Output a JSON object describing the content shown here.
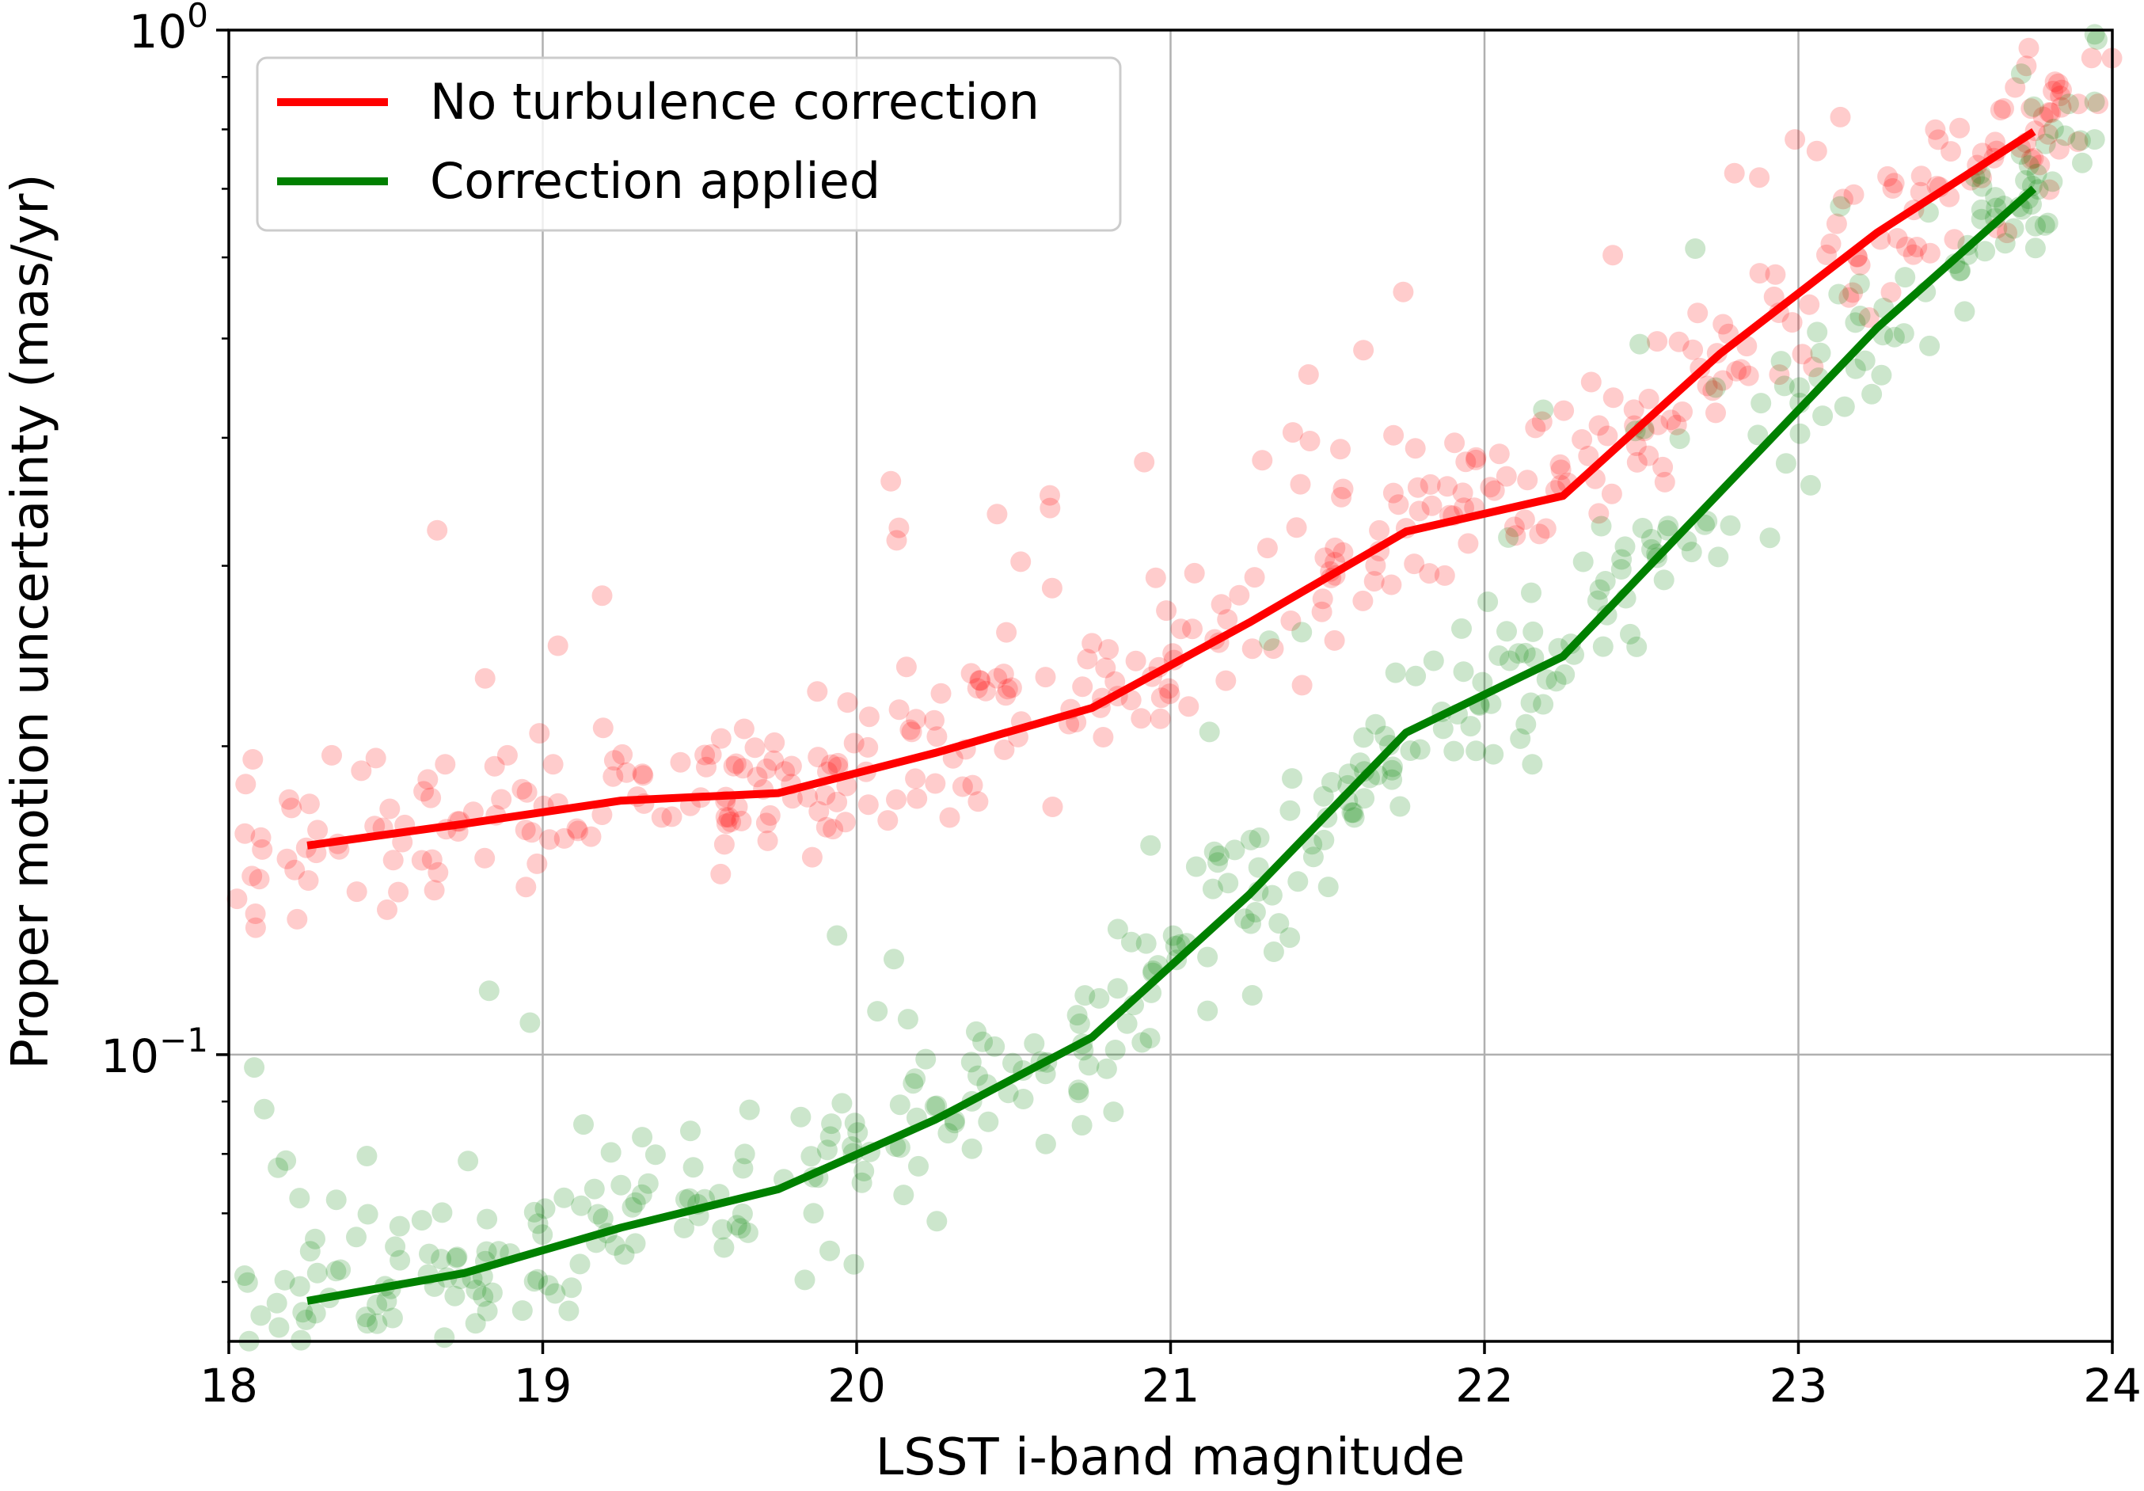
{
  "chart_data": {
    "type": "scatter",
    "xlabel": "LSST i-band magnitude",
    "ylabel": "Proper motion uncertainty (mas/yr)",
    "xlim": [
      18,
      24
    ],
    "ylim": [
      0.0525,
      1.0
    ],
    "yscale": "log",
    "grid": true,
    "legend_position": "top-left",
    "x_ticks": [
      {
        "value": 18,
        "label": "18"
      },
      {
        "value": 19,
        "label": "19"
      },
      {
        "value": 20,
        "label": "20"
      },
      {
        "value": 21,
        "label": "21"
      },
      {
        "value": 22,
        "label": "22"
      },
      {
        "value": 23,
        "label": "23"
      },
      {
        "value": 24,
        "label": "24"
      }
    ],
    "y_ticks": [
      {
        "value": 0.1,
        "base": "10",
        "exp": "−1"
      },
      {
        "value": 1.0,
        "base": "10",
        "exp": "0"
      }
    ],
    "series": [
      {
        "name": "No turbulence correction",
        "color": "#ff0000",
        "line": {
          "x": [
            18.25,
            18.75,
            19.25,
            19.75,
            20.25,
            20.75,
            21.25,
            21.75,
            22.25,
            22.75,
            23.25,
            23.75
          ],
          "y": [
            0.16,
            0.168,
            0.177,
            0.18,
            0.197,
            0.218,
            0.264,
            0.324,
            0.351,
            0.483,
            0.634,
            0.796
          ]
        }
      },
      {
        "name": "Correction applied",
        "color": "#008000",
        "line": {
          "x": [
            18.25,
            18.75,
            19.25,
            19.75,
            20.25,
            20.75,
            21.25,
            21.75,
            22.25,
            22.75,
            23.25,
            23.75
          ],
          "y": [
            0.0575,
            0.0612,
            0.0678,
            0.0739,
            0.0864,
            0.104,
            0.1432,
            0.2062,
            0.2447,
            0.354,
            0.5119,
            0.7003
          ]
        }
      }
    ]
  }
}
